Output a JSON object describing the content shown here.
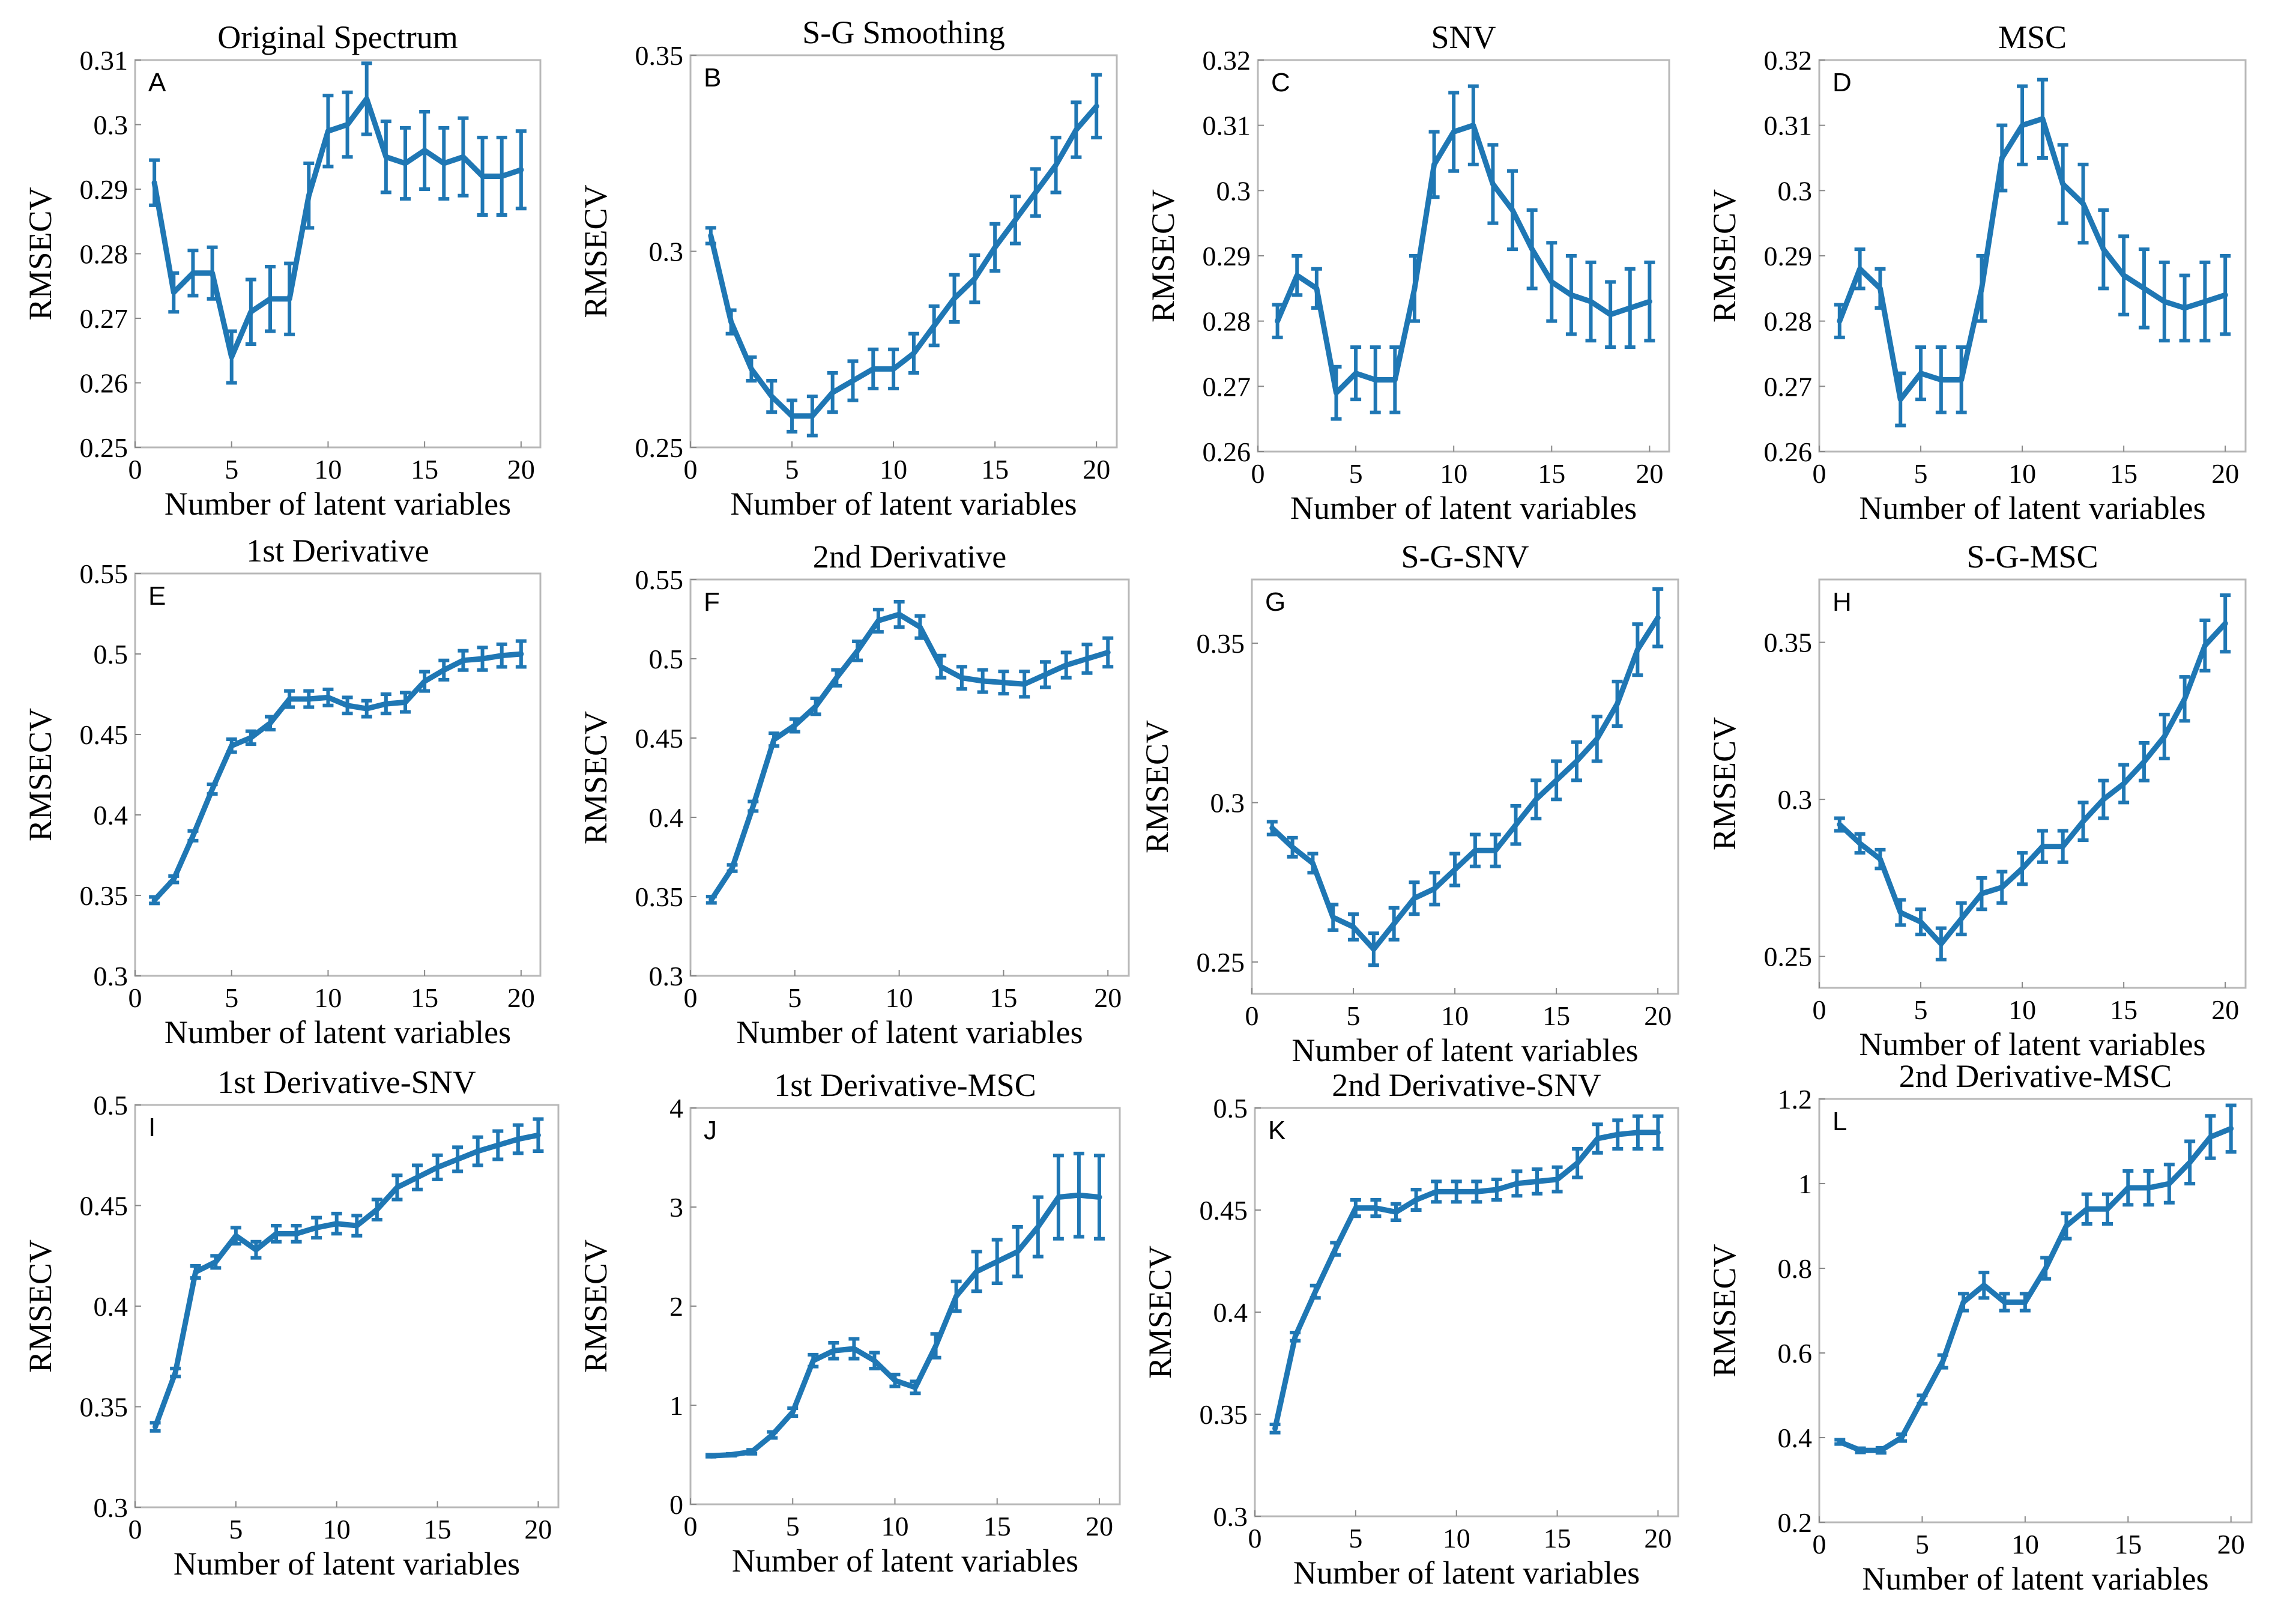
{
  "style": {
    "series_color": "#1F77B4",
    "frame_color": "#B8B8B8"
  },
  "chart_data": [
    {
      "id": "A",
      "type": "line",
      "title": "Original Spectrum",
      "xlabel": "Number of latent variables",
      "ylabel": "RMSECV",
      "xlim": [
        0,
        21
      ],
      "ylim": [
        0.25,
        0.31
      ],
      "xticks": [
        0,
        5,
        10,
        15,
        20
      ],
      "yticks": [
        0.25,
        0.26,
        0.27,
        0.28,
        0.29,
        0.3,
        0.31
      ],
      "ytick_labels": [
        "0.25",
        "0.26",
        "0.27",
        "0.28",
        "0.29",
        "0.3",
        "0.31"
      ],
      "x": [
        1,
        2,
        3,
        4,
        5,
        6,
        7,
        8,
        9,
        10,
        11,
        12,
        13,
        14,
        15,
        16,
        17,
        18,
        19,
        20
      ],
      "values": [
        0.291,
        0.274,
        0.277,
        0.277,
        0.264,
        0.271,
        0.273,
        0.273,
        0.289,
        0.299,
        0.3,
        0.304,
        0.295,
        0.294,
        0.296,
        0.294,
        0.295,
        0.292,
        0.292,
        0.293
      ],
      "errors": [
        0.0035,
        0.003,
        0.0035,
        0.004,
        0.004,
        0.005,
        0.005,
        0.0055,
        0.005,
        0.0055,
        0.005,
        0.0055,
        0.0055,
        0.0055,
        0.006,
        0.0055,
        0.006,
        0.006,
        0.006,
        0.006
      ]
    },
    {
      "id": "B",
      "type": "line",
      "title": "S-G Smoothing",
      "xlabel": "Number of latent variables",
      "ylabel": "RMSECV",
      "xlim": [
        0,
        21
      ],
      "ylim": [
        0.25,
        0.35
      ],
      "xticks": [
        0,
        5,
        10,
        15,
        20
      ],
      "yticks": [
        0.25,
        0.3,
        0.35
      ],
      "ytick_labels": [
        "0.25",
        "0.3",
        "0.35"
      ],
      "x": [
        1,
        2,
        3,
        4,
        5,
        6,
        7,
        8,
        9,
        10,
        11,
        12,
        13,
        14,
        15,
        16,
        17,
        18,
        19,
        20
      ],
      "values": [
        0.304,
        0.282,
        0.27,
        0.263,
        0.258,
        0.258,
        0.264,
        0.267,
        0.27,
        0.27,
        0.274,
        0.281,
        0.288,
        0.293,
        0.301,
        0.308,
        0.315,
        0.322,
        0.331,
        0.337
      ],
      "errors": [
        0.002,
        0.003,
        0.003,
        0.004,
        0.004,
        0.005,
        0.005,
        0.005,
        0.005,
        0.005,
        0.005,
        0.005,
        0.006,
        0.006,
        0.006,
        0.006,
        0.006,
        0.007,
        0.007,
        0.008
      ]
    },
    {
      "id": "C",
      "type": "line",
      "title": "SNV",
      "xlabel": "Number of latent variables",
      "ylabel": "RMSECV",
      "xlim": [
        0,
        21
      ],
      "ylim": [
        0.26,
        0.32
      ],
      "xticks": [
        0,
        5,
        10,
        15,
        20
      ],
      "yticks": [
        0.26,
        0.27,
        0.28,
        0.29,
        0.3,
        0.31,
        0.32
      ],
      "ytick_labels": [
        "0.26",
        "0.27",
        "0.28",
        "0.29",
        "0.3",
        "0.31",
        "0.32"
      ],
      "x": [
        1,
        2,
        3,
        4,
        5,
        6,
        7,
        8,
        9,
        10,
        11,
        12,
        13,
        14,
        15,
        16,
        17,
        18,
        19,
        20
      ],
      "values": [
        0.28,
        0.287,
        0.285,
        0.269,
        0.272,
        0.271,
        0.271,
        0.285,
        0.304,
        0.309,
        0.31,
        0.301,
        0.297,
        0.291,
        0.286,
        0.284,
        0.283,
        0.281,
        0.282,
        0.283
      ],
      "errors": [
        0.0025,
        0.003,
        0.003,
        0.004,
        0.004,
        0.005,
        0.005,
        0.005,
        0.005,
        0.006,
        0.006,
        0.006,
        0.006,
        0.006,
        0.006,
        0.006,
        0.006,
        0.005,
        0.006,
        0.006
      ]
    },
    {
      "id": "D",
      "type": "line",
      "title": "MSC",
      "xlabel": "Number of latent variables",
      "ylabel": "RMSECV",
      "xlim": [
        0,
        21
      ],
      "ylim": [
        0.26,
        0.32
      ],
      "xticks": [
        0,
        5,
        10,
        15,
        20
      ],
      "yticks": [
        0.26,
        0.27,
        0.28,
        0.29,
        0.3,
        0.31,
        0.32
      ],
      "ytick_labels": [
        "0.26",
        "0.27",
        "0.28",
        "0.29",
        "0.3",
        "0.31",
        "0.32"
      ],
      "x": [
        1,
        2,
        3,
        4,
        5,
        6,
        7,
        8,
        9,
        10,
        11,
        12,
        13,
        14,
        15,
        16,
        17,
        18,
        19,
        20
      ],
      "values": [
        0.28,
        0.288,
        0.285,
        0.268,
        0.272,
        0.271,
        0.271,
        0.285,
        0.305,
        0.31,
        0.311,
        0.301,
        0.298,
        0.291,
        0.287,
        0.285,
        0.283,
        0.282,
        0.283,
        0.284
      ],
      "errors": [
        0.0025,
        0.003,
        0.003,
        0.004,
        0.004,
        0.005,
        0.005,
        0.005,
        0.005,
        0.006,
        0.006,
        0.006,
        0.006,
        0.006,
        0.006,
        0.006,
        0.006,
        0.005,
        0.006,
        0.006
      ]
    },
    {
      "id": "E",
      "type": "line",
      "title": "1st Derivative",
      "xlabel": "Number of latent variables",
      "ylabel": "RMSECV",
      "xlim": [
        0,
        21
      ],
      "ylim": [
        0.3,
        0.55
      ],
      "xticks": [
        0,
        5,
        10,
        15,
        20
      ],
      "yticks": [
        0.3,
        0.35,
        0.4,
        0.45,
        0.5,
        0.55
      ],
      "ytick_labels": [
        "0.3",
        "0.35",
        "0.4",
        "0.45",
        "0.5",
        "0.55"
      ],
      "x": [
        1,
        2,
        3,
        4,
        5,
        6,
        7,
        8,
        9,
        10,
        11,
        12,
        13,
        14,
        15,
        16,
        17,
        18,
        19,
        20
      ],
      "values": [
        0.347,
        0.36,
        0.387,
        0.416,
        0.443,
        0.448,
        0.457,
        0.472,
        0.472,
        0.473,
        0.468,
        0.466,
        0.469,
        0.47,
        0.483,
        0.49,
        0.496,
        0.497,
        0.499,
        0.5
      ],
      "errors": [
        0.002,
        0.002,
        0.003,
        0.003,
        0.004,
        0.004,
        0.004,
        0.005,
        0.005,
        0.005,
        0.005,
        0.005,
        0.006,
        0.006,
        0.006,
        0.006,
        0.006,
        0.007,
        0.007,
        0.008
      ]
    },
    {
      "id": "F",
      "type": "line",
      "title": "2nd Derivative",
      "xlabel": "Number of latent variables",
      "ylabel": "RMSECV",
      "xlim": [
        0,
        21
      ],
      "ylim": [
        0.3,
        0.55
      ],
      "xticks": [
        0,
        5,
        10,
        15,
        20
      ],
      "yticks": [
        0.3,
        0.35,
        0.4,
        0.45,
        0.5,
        0.55
      ],
      "ytick_labels": [
        "0.3",
        "0.35",
        "0.4",
        "0.45",
        "0.5",
        "0.55"
      ],
      "x": [
        1,
        2,
        3,
        4,
        5,
        6,
        7,
        8,
        9,
        10,
        11,
        12,
        13,
        14,
        15,
        16,
        17,
        18,
        19,
        20
      ],
      "values": [
        0.348,
        0.368,
        0.407,
        0.449,
        0.458,
        0.47,
        0.488,
        0.505,
        0.524,
        0.528,
        0.52,
        0.495,
        0.488,
        0.486,
        0.485,
        0.484,
        0.49,
        0.496,
        0.5,
        0.504
      ],
      "errors": [
        0.002,
        0.002,
        0.003,
        0.004,
        0.004,
        0.005,
        0.005,
        0.006,
        0.007,
        0.008,
        0.007,
        0.007,
        0.007,
        0.007,
        0.007,
        0.008,
        0.008,
        0.008,
        0.009,
        0.009
      ]
    },
    {
      "id": "G",
      "type": "line",
      "title": "S-G-SNV",
      "xlabel": "Number of latent variables",
      "ylabel": "RMSECV",
      "xlim": [
        0,
        21
      ],
      "ylim": [
        0.24,
        0.37
      ],
      "xticks": [
        0,
        5,
        10,
        15,
        20
      ],
      "yticks": [
        0.25,
        0.3,
        0.35
      ],
      "ytick_labels": [
        "0.25",
        "0.3",
        "0.35"
      ],
      "x": [
        1,
        2,
        3,
        4,
        5,
        6,
        7,
        8,
        9,
        10,
        11,
        12,
        13,
        14,
        15,
        16,
        17,
        18,
        19,
        20
      ],
      "values": [
        0.292,
        0.286,
        0.281,
        0.264,
        0.261,
        0.254,
        0.262,
        0.27,
        0.273,
        0.279,
        0.285,
        0.285,
        0.293,
        0.301,
        0.307,
        0.313,
        0.32,
        0.331,
        0.348,
        0.358
      ],
      "errors": [
        0.002,
        0.003,
        0.003,
        0.004,
        0.004,
        0.005,
        0.005,
        0.005,
        0.005,
        0.005,
        0.005,
        0.005,
        0.006,
        0.006,
        0.006,
        0.006,
        0.007,
        0.007,
        0.008,
        0.009
      ]
    },
    {
      "id": "H",
      "type": "line",
      "title": "S-G-MSC",
      "xlabel": "Number of latent variables",
      "ylabel": "RMSECV",
      "xlim": [
        0,
        21
      ],
      "ylim": [
        0.24,
        0.37
      ],
      "xticks": [
        0,
        5,
        10,
        15,
        20
      ],
      "yticks": [
        0.25,
        0.3,
        0.35
      ],
      "ytick_labels": [
        "0.25",
        "0.3",
        "0.35"
      ],
      "x": [
        1,
        2,
        3,
        4,
        5,
        6,
        7,
        8,
        9,
        10,
        11,
        12,
        13,
        14,
        15,
        16,
        17,
        18,
        19,
        20
      ],
      "values": [
        0.292,
        0.286,
        0.281,
        0.264,
        0.261,
        0.254,
        0.262,
        0.27,
        0.272,
        0.278,
        0.285,
        0.285,
        0.293,
        0.3,
        0.305,
        0.312,
        0.32,
        0.332,
        0.349,
        0.356
      ],
      "errors": [
        0.002,
        0.003,
        0.003,
        0.004,
        0.004,
        0.005,
        0.005,
        0.005,
        0.005,
        0.005,
        0.005,
        0.005,
        0.006,
        0.006,
        0.006,
        0.006,
        0.007,
        0.007,
        0.008,
        0.009
      ]
    },
    {
      "id": "I",
      "type": "line",
      "title": "1st Derivative-SNV",
      "xlabel": "Number of latent variables",
      "ylabel": "RMSECV",
      "xlim": [
        0,
        21
      ],
      "ylim": [
        0.3,
        0.5
      ],
      "xticks": [
        0,
        5,
        10,
        15,
        20
      ],
      "yticks": [
        0.3,
        0.35,
        0.4,
        0.45,
        0.5
      ],
      "ytick_labels": [
        "0.3",
        "0.35",
        "0.4",
        "0.45",
        "0.5"
      ],
      "x": [
        1,
        2,
        3,
        4,
        5,
        6,
        7,
        8,
        9,
        10,
        11,
        12,
        13,
        14,
        15,
        16,
        17,
        18,
        19,
        20
      ],
      "values": [
        0.34,
        0.367,
        0.417,
        0.422,
        0.435,
        0.428,
        0.436,
        0.436,
        0.439,
        0.441,
        0.44,
        0.448,
        0.459,
        0.464,
        0.469,
        0.473,
        0.477,
        0.48,
        0.483,
        0.485
      ],
      "errors": [
        0.002,
        0.002,
        0.003,
        0.003,
        0.004,
        0.004,
        0.004,
        0.004,
        0.005,
        0.005,
        0.005,
        0.005,
        0.006,
        0.006,
        0.006,
        0.006,
        0.007,
        0.007,
        0.007,
        0.008
      ]
    },
    {
      "id": "J",
      "type": "line",
      "title": "1st Derivative-MSC",
      "xlabel": "Number of latent variables",
      "ylabel": "RMSECV",
      "xlim": [
        0,
        21
      ],
      "ylim": [
        0,
        4
      ],
      "xticks": [
        0,
        5,
        10,
        15,
        20
      ],
      "yticks": [
        0,
        1,
        2,
        3,
        4
      ],
      "ytick_labels": [
        "0",
        "1",
        "2",
        "3",
        "4"
      ],
      "x": [
        1,
        2,
        3,
        4,
        5,
        6,
        7,
        8,
        9,
        10,
        11,
        12,
        13,
        14,
        15,
        16,
        17,
        18,
        19,
        20
      ],
      "values": [
        0.49,
        0.5,
        0.53,
        0.7,
        0.93,
        1.45,
        1.55,
        1.57,
        1.45,
        1.25,
        1.18,
        1.6,
        2.1,
        2.35,
        2.45,
        2.55,
        2.8,
        3.1,
        3.12,
        3.1
      ],
      "errors": [
        0.01,
        0.01,
        0.02,
        0.03,
        0.04,
        0.06,
        0.08,
        0.1,
        0.08,
        0.06,
        0.06,
        0.12,
        0.15,
        0.2,
        0.22,
        0.25,
        0.3,
        0.42,
        0.42,
        0.42
      ]
    },
    {
      "id": "K",
      "type": "line",
      "title": "2nd Derivative-SNV",
      "xlabel": "Number of latent variables",
      "ylabel": "RMSECV",
      "xlim": [
        0,
        21
      ],
      "ylim": [
        0.3,
        0.5
      ],
      "xticks": [
        0,
        5,
        10,
        15,
        20
      ],
      "yticks": [
        0.3,
        0.35,
        0.4,
        0.45,
        0.5
      ],
      "ytick_labels": [
        "0.3",
        "0.35",
        "0.4",
        "0.45",
        "0.5"
      ],
      "x": [
        1,
        2,
        3,
        4,
        5,
        6,
        7,
        8,
        9,
        10,
        11,
        12,
        13,
        14,
        15,
        16,
        17,
        18,
        19,
        20
      ],
      "values": [
        0.343,
        0.388,
        0.41,
        0.431,
        0.451,
        0.451,
        0.449,
        0.455,
        0.459,
        0.459,
        0.459,
        0.46,
        0.463,
        0.464,
        0.465,
        0.473,
        0.485,
        0.487,
        0.488,
        0.488
      ],
      "errors": [
        0.002,
        0.002,
        0.003,
        0.003,
        0.004,
        0.004,
        0.004,
        0.005,
        0.005,
        0.005,
        0.005,
        0.005,
        0.006,
        0.006,
        0.006,
        0.007,
        0.007,
        0.007,
        0.008,
        0.008
      ]
    },
    {
      "id": "L",
      "type": "line",
      "title": "2nd Derivative-MSC",
      "xlabel": "Number of latent variables",
      "ylabel": "RMSECV",
      "xlim": [
        0,
        21
      ],
      "ylim": [
        0.2,
        1.2
      ],
      "xticks": [
        0,
        5,
        10,
        15,
        20
      ],
      "yticks": [
        0.2,
        0.4,
        0.6,
        0.8,
        1,
        1.2
      ],
      "ytick_labels": [
        "0.2",
        "0.4",
        "0.6",
        "0.8",
        "1",
        "1.2"
      ],
      "x": [
        1,
        2,
        3,
        4,
        5,
        6,
        7,
        8,
        9,
        10,
        11,
        12,
        13,
        14,
        15,
        16,
        17,
        18,
        19,
        20
      ],
      "values": [
        0.39,
        0.37,
        0.37,
        0.4,
        0.49,
        0.58,
        0.72,
        0.76,
        0.72,
        0.72,
        0.8,
        0.9,
        0.94,
        0.94,
        0.99,
        0.99,
        1.0,
        1.05,
        1.11,
        1.13
      ],
      "errors": [
        0.005,
        0.005,
        0.006,
        0.008,
        0.01,
        0.015,
        0.02,
        0.03,
        0.02,
        0.02,
        0.025,
        0.03,
        0.035,
        0.035,
        0.04,
        0.04,
        0.045,
        0.05,
        0.05,
        0.055
      ]
    }
  ]
}
